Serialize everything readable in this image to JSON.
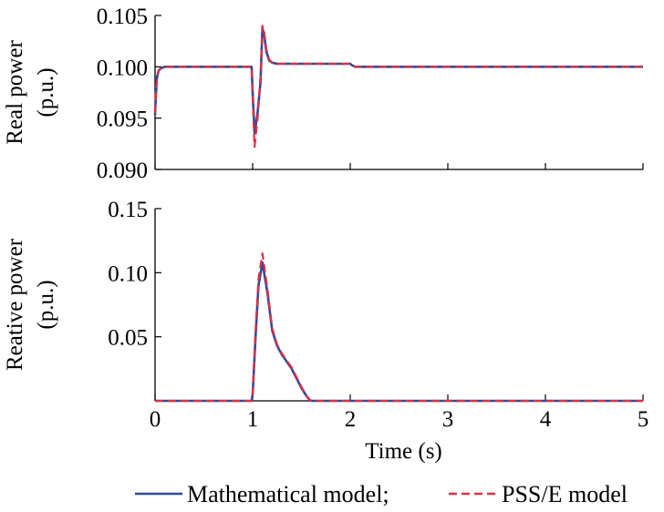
{
  "chart_data": [
    {
      "type": "line",
      "ylabel": [
        "Real power",
        "(p.u.)"
      ],
      "xlim": [
        0,
        5
      ],
      "ylim": [
        0.09,
        0.105
      ],
      "yticks": [
        "0.090",
        "0.095",
        "0.100",
        "0.105"
      ],
      "grid": false,
      "series": [
        {
          "name": "Mathematical model",
          "color": "#2b4aa0",
          "style": "solid",
          "x": [
            0,
            0.01,
            0.02,
            0.04,
            0.07,
            0.1,
            0.3,
            0.6,
            0.99,
            1.0,
            1.02,
            1.05,
            1.08,
            1.1,
            1.12,
            1.14,
            1.17,
            1.2,
            1.25,
            1.3,
            1.5,
            2.0,
            2.01,
            2.05,
            2.5,
            3.0,
            4.0,
            5.0
          ],
          "y": [
            0.0953,
            0.0975,
            0.099,
            0.0997,
            0.0999,
            0.1,
            0.1,
            0.1,
            0.1,
            0.0975,
            0.0935,
            0.0955,
            0.0985,
            0.1038,
            0.103,
            0.1015,
            0.1006,
            0.1004,
            0.1003,
            0.1003,
            0.1003,
            0.1003,
            0.1002,
            0.1,
            0.1,
            0.1,
            0.1,
            0.1
          ]
        },
        {
          "name": "PSS/E model",
          "color": "#e03040",
          "style": "dashed",
          "x": [
            0,
            0.01,
            0.02,
            0.04,
            0.07,
            0.1,
            0.3,
            0.6,
            0.99,
            1.0,
            1.02,
            1.05,
            1.08,
            1.1,
            1.12,
            1.14,
            1.17,
            1.2,
            1.25,
            1.3,
            1.5,
            2.0,
            2.01,
            2.05,
            2.5,
            3.0,
            4.0,
            5.0
          ],
          "y": [
            0.0955,
            0.0978,
            0.0991,
            0.0997,
            0.0999,
            0.1,
            0.1,
            0.1,
            0.1,
            0.097,
            0.0922,
            0.095,
            0.099,
            0.104,
            0.1033,
            0.1017,
            0.1007,
            0.1004,
            0.1003,
            0.1003,
            0.1003,
            0.1003,
            0.1002,
            0.1,
            0.1,
            0.1,
            0.1,
            0.1
          ]
        }
      ]
    },
    {
      "type": "line",
      "xlabel": "Time (s)",
      "ylabel": [
        "Reative power",
        "(p.u.)"
      ],
      "xlim": [
        0,
        5
      ],
      "ylim": [
        0,
        0.15
      ],
      "xticks": [
        "0",
        "1",
        "2",
        "3",
        "4",
        "5"
      ],
      "yticks": [
        "0.05",
        "0.10",
        "0.15"
      ],
      "grid": false,
      "series": [
        {
          "name": "Mathematical model",
          "color": "#2b4aa0",
          "style": "solid",
          "x": [
            0,
            0.99,
            1.0,
            1.03,
            1.06,
            1.1,
            1.15,
            1.2,
            1.25,
            1.3,
            1.4,
            1.5,
            1.55,
            1.58,
            1.6,
            2.0,
            3.0,
            4.0,
            5.0
          ],
          "y": [
            0,
            0,
            0.005,
            0.05,
            0.09,
            0.108,
            0.085,
            0.055,
            0.043,
            0.036,
            0.025,
            0.01,
            0.004,
            0.001,
            0,
            0,
            0,
            0,
            0
          ]
        },
        {
          "name": "PSS/E model",
          "color": "#e03040",
          "style": "dashed",
          "x": [
            0,
            0.99,
            1.0,
            1.03,
            1.06,
            1.1,
            1.15,
            1.2,
            1.25,
            1.3,
            1.4,
            1.5,
            1.55,
            1.58,
            1.6,
            2.0,
            3.0,
            4.0,
            5.0
          ],
          "y": [
            0,
            0,
            0.006,
            0.055,
            0.095,
            0.115,
            0.088,
            0.057,
            0.044,
            0.037,
            0.026,
            0.011,
            0.004,
            0.001,
            0,
            0,
            0,
            0,
            0
          ]
        }
      ]
    }
  ],
  "legend": {
    "placement": "bottom-center",
    "items": [
      {
        "label": "Mathematical model;",
        "color": "#2b4aa0",
        "style": "solid"
      },
      {
        "label": "PSS/E model",
        "color": "#e03040",
        "style": "dashed"
      }
    ]
  }
}
